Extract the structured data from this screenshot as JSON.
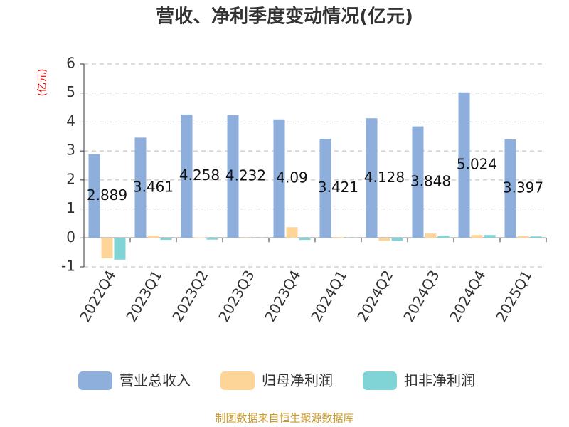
{
  "chart_data": {
    "type": "bar",
    "title": "营收、净利季度变动情况(亿元)",
    "y_axis_label": "(亿元)",
    "source": "制图数据来自恒生聚源数据库",
    "categories": [
      "2022Q4",
      "2023Q1",
      "2023Q2",
      "2023Q3",
      "2023Q4",
      "2024Q1",
      "2024Q2",
      "2024Q3",
      "2024Q4",
      "2025Q1"
    ],
    "series": [
      {
        "name": "营业总收入",
        "color": "#8eaedc",
        "values": [
          2.889,
          3.461,
          4.258,
          4.232,
          4.09,
          3.421,
          4.128,
          3.848,
          5.024,
          3.397
        ],
        "show_labels": true
      },
      {
        "name": "归母净利润",
        "color": "#fdd598",
        "values": [
          -0.7,
          0.08,
          0.02,
          0.01,
          0.37,
          0.03,
          -0.1,
          0.15,
          0.1,
          0.07
        ]
      },
      {
        "name": "扣非净利润",
        "color": "#80d4d6",
        "values": [
          -0.75,
          -0.07,
          -0.06,
          0.0,
          -0.07,
          0.0,
          -0.1,
          0.08,
          0.1,
          0.05
        ]
      }
    ],
    "ylim": [
      -1,
      6
    ],
    "yticks": [
      -1,
      0,
      1,
      2,
      3,
      4,
      5,
      6
    ],
    "grid": true,
    "legend": "bottom"
  }
}
